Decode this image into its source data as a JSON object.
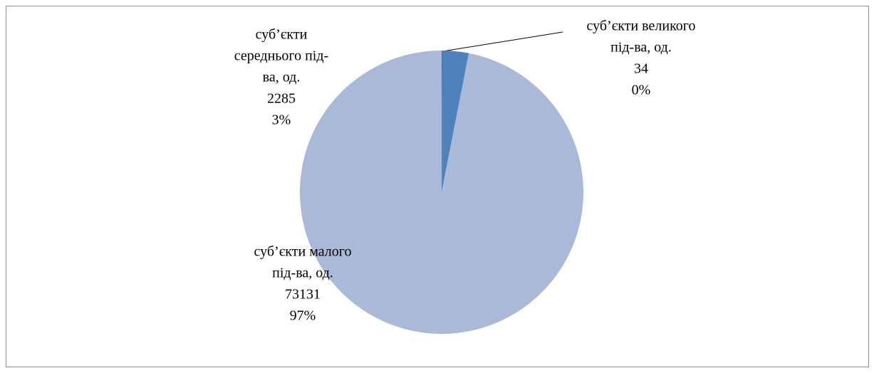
{
  "chart_data": {
    "type": "pie",
    "categories": [
      [
        "суб’єкти великого",
        "під-ва, од."
      ],
      [
        "суб’єкти",
        "середнього під-",
        "ва, од."
      ],
      [
        "суб’єкти малого",
        "під-ва, од."
      ]
    ],
    "values": [
      34,
      2285,
      73131
    ],
    "percent_labels": [
      "0%",
      "3%",
      "97%"
    ],
    "colors": [
      "#3a5f95",
      "#4f81bd",
      "#aab9d7"
    ]
  }
}
